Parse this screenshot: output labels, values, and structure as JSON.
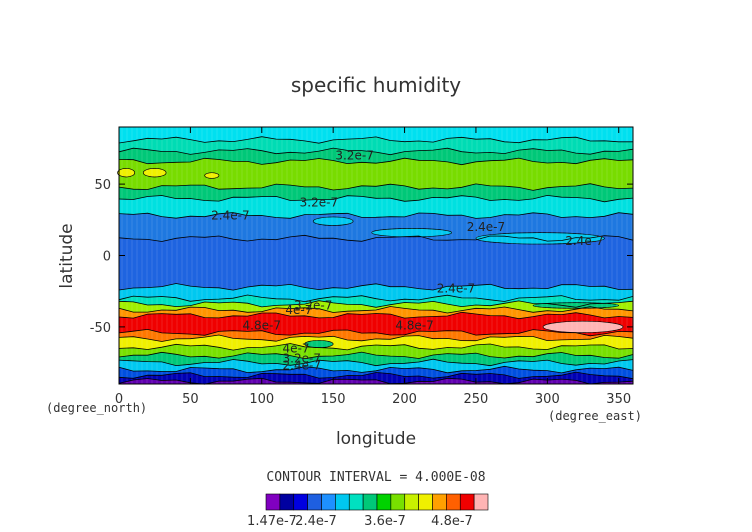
{
  "chart_data": {
    "type": "contour",
    "title": "specific humidity",
    "xlabel": "longitude",
    "ylabel": "latitude",
    "x_unit_label": "(degree_east)",
    "y_unit_label": "(degree_north)",
    "xlim": [
      0,
      360
    ],
    "ylim": [
      -90,
      90
    ],
    "x_ticks": [
      0,
      50,
      100,
      150,
      200,
      250,
      300,
      350
    ],
    "y_ticks": [
      -50,
      0,
      50
    ],
    "contour_interval_text": "CONTOUR INTERVAL = 4.000E-08",
    "colorbar_labels": [
      "1.47e-7",
      "2.4e-7",
      "3.6e-7",
      "4.8e-7"
    ],
    "colorbar_colors": [
      "#8000c0",
      "#0000a0",
      "#0000e0",
      "#1e5fe0",
      "#1e90ff",
      "#00c8f0",
      "#00e0c0",
      "#00c878",
      "#00d200",
      "#78e000",
      "#c8f000",
      "#f0f000",
      "#ffa000",
      "#ff6000",
      "#f00000",
      "#ffb4b4"
    ],
    "bands": [
      {
        "lat_top": 90,
        "lat_bottom": 81,
        "color": "#00e0f0"
      },
      {
        "lat_top": 81,
        "lat_bottom": 73,
        "color": "#00dcb4"
      },
      {
        "lat_top": 73,
        "lat_bottom": 66,
        "color": "#00c878"
      },
      {
        "lat_top": 66,
        "lat_bottom": 48,
        "color": "#78dc00"
      },
      {
        "lat_top": 48,
        "lat_bottom": 40,
        "color": "#00c878"
      },
      {
        "lat_top": 40,
        "lat_bottom": 28,
        "color": "#00e0e0"
      },
      {
        "lat_top": 28,
        "lat_bottom": 12,
        "color": "#1e78e0"
      },
      {
        "lat_top": 12,
        "lat_bottom": -22,
        "color": "#1e64e0"
      },
      {
        "lat_top": -22,
        "lat_bottom": -30,
        "color": "#00c8f0"
      },
      {
        "lat_top": -30,
        "lat_bottom": -34,
        "color": "#00e0c0"
      },
      {
        "lat_top": -34,
        "lat_bottom": -38,
        "color": "#a0f000"
      },
      {
        "lat_top": -38,
        "lat_bottom": -42,
        "color": "#ff9600"
      },
      {
        "lat_top": -42,
        "lat_bottom": -54,
        "color": "#f00000"
      },
      {
        "lat_top": -54,
        "lat_bottom": -58,
        "color": "#ff7800"
      },
      {
        "lat_top": -58,
        "lat_bottom": -64,
        "color": "#f0f000"
      },
      {
        "lat_top": -64,
        "lat_bottom": -70,
        "color": "#78e000"
      },
      {
        "lat_top": -70,
        "lat_bottom": -75,
        "color": "#00c878"
      },
      {
        "lat_top": -75,
        "lat_bottom": -80,
        "color": "#00c8f0"
      },
      {
        "lat_top": -80,
        "lat_bottom": -84,
        "color": "#0050e0"
      },
      {
        "lat_top": -84,
        "lat_bottom": -88,
        "color": "#0000b4"
      },
      {
        "lat_top": -88,
        "lat_bottom": -90,
        "color": "#6000b0"
      }
    ],
    "blobs": [
      {
        "lon": 5,
        "lat": 58,
        "rlon": 6,
        "rlat": 3,
        "color": "#f0f000"
      },
      {
        "lon": 25,
        "lat": 58,
        "rlon": 8,
        "rlat": 3,
        "color": "#f0f000"
      },
      {
        "lon": 65,
        "lat": 56,
        "rlon": 5,
        "rlat": 2,
        "color": "#f0f000"
      },
      {
        "lon": 150,
        "lat": 24,
        "rlon": 14,
        "rlat": 3,
        "color": "#00c8f0"
      },
      {
        "lon": 205,
        "lat": 16,
        "rlon": 28,
        "rlat": 3,
        "color": "#00c8f0"
      },
      {
        "lon": 295,
        "lat": 12,
        "rlon": 45,
        "rlat": 4,
        "color": "#00c8f0"
      },
      {
        "lon": 325,
        "lat": -50,
        "rlon": 28,
        "rlat": 4,
        "color": "#ffb4b4"
      },
      {
        "lon": 140,
        "lat": -62,
        "rlon": 10,
        "rlat": 2.5,
        "color": "#00c878"
      },
      {
        "lon": 320,
        "lat": -35,
        "rlon": 30,
        "rlat": 2,
        "color": "#00c878"
      }
    ],
    "annotations": [
      {
        "text": "3.2e-7",
        "lon": 165,
        "lat": 70
      },
      {
        "text": "3.2e-7",
        "lon": 140,
        "lat": 37
      },
      {
        "text": "2.4e-7",
        "lon": 78,
        "lat": 28
      },
      {
        "text": "2.4e-7",
        "lon": 257,
        "lat": 20
      },
      {
        "text": "2.4e-7",
        "lon": 326,
        "lat": 10
      },
      {
        "text": "2.4e-7",
        "lon": 236,
        "lat": -23
      },
      {
        "text": "3.2e-7",
        "lon": 136,
        "lat": -35
      },
      {
        "text": "4e-7",
        "lon": 126,
        "lat": -38
      },
      {
        "text": "4.8e-7",
        "lon": 100,
        "lat": -49
      },
      {
        "text": "4.8e-7",
        "lon": 207,
        "lat": -49
      },
      {
        "text": "4e-7",
        "lon": 124,
        "lat": -65
      },
      {
        "text": "3.2e-7",
        "lon": 128,
        "lat": -72
      },
      {
        "text": "2.4e-7",
        "lon": 128,
        "lat": -77
      }
    ]
  }
}
